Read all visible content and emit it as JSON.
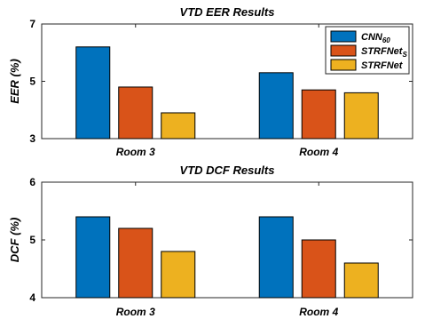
{
  "chart_data": [
    {
      "type": "bar",
      "title": "VTD EER Results",
      "ylabel": "EER (%)",
      "categories": [
        "Room 3",
        "Room 4"
      ],
      "ylim": [
        3,
        7
      ],
      "yticks": [
        3,
        5,
        7
      ],
      "series": [
        {
          "name": "CNN",
          "name_sub": "60",
          "color": "#0072BD",
          "values": [
            6.2,
            5.3
          ]
        },
        {
          "name": "STRFNet",
          "name_sub": "S",
          "color": "#D95319",
          "values": [
            4.8,
            4.7
          ]
        },
        {
          "name": "STRFNet",
          "name_sub": "",
          "color": "#EDB120",
          "values": [
            3.9,
            4.6
          ]
        }
      ],
      "legend": "top-right"
    },
    {
      "type": "bar",
      "title": "VTD DCF Results",
      "ylabel": "DCF (%)",
      "categories": [
        "Room 3",
        "Room 4"
      ],
      "ylim": [
        4,
        6
      ],
      "yticks": [
        4,
        5,
        6
      ],
      "series": [
        {
          "name": "CNN",
          "name_sub": "60",
          "color": "#0072BD",
          "values": [
            5.4,
            5.4
          ]
        },
        {
          "name": "STRFNet",
          "name_sub": "S",
          "color": "#D95319",
          "values": [
            5.2,
            5.0
          ]
        },
        {
          "name": "STRFNet",
          "name_sub": "",
          "color": "#EDB120",
          "values": [
            4.8,
            4.6
          ]
        }
      ]
    }
  ]
}
